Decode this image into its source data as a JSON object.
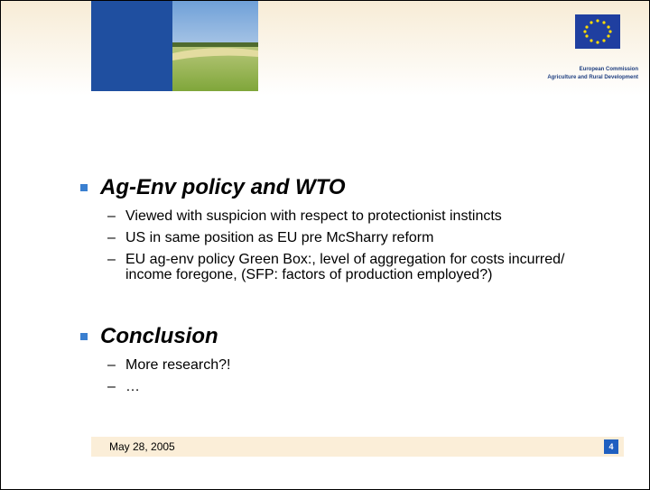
{
  "header": {
    "org_line1": "European Commission",
    "org_line2": "Agriculture and Rural Development"
  },
  "sections": [
    {
      "title": "Ag-Env policy and WTO",
      "items": [
        "Viewed with suspicion with respect to protectionist instincts",
        "US in same position as EU pre McSharry reform",
        "EU ag-env policy Green Box:, level of aggregation for costs incurred/ income foregone, (SFP: factors of production employed?)"
      ]
    },
    {
      "title": "Conclusion",
      "items": [
        "More research?!",
        "…"
      ]
    }
  ],
  "footer": {
    "date": "May 28, 2005",
    "page": "4"
  }
}
